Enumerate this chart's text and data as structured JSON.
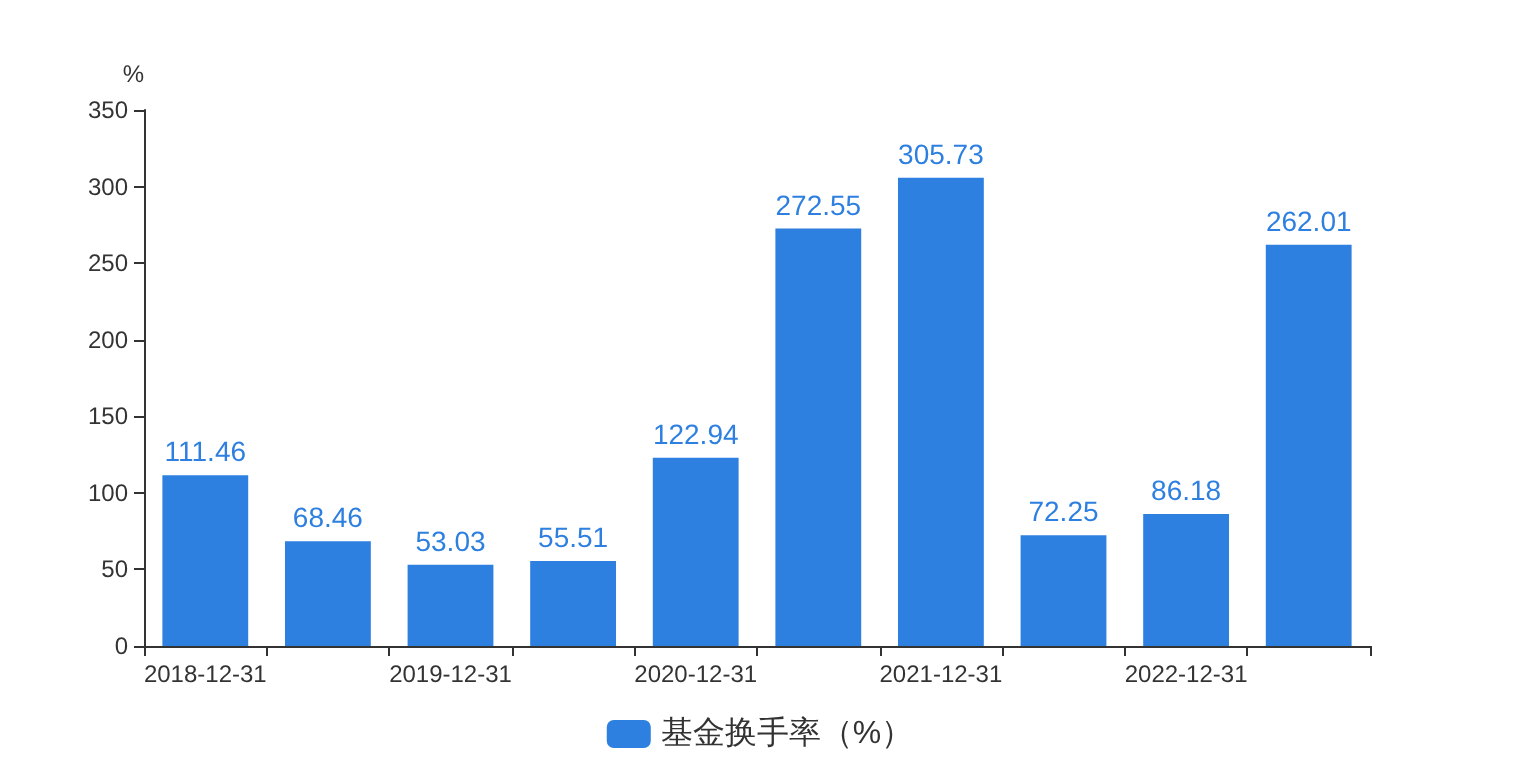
{
  "chart_data": {
    "type": "bar",
    "ylabel": "%",
    "categories": [
      "2018-12-31",
      null,
      "2019-12-31",
      null,
      "2020-12-31",
      null,
      "2021-12-31",
      null,
      "2022-12-31",
      null
    ],
    "series": [
      {
        "name": "基金换手率（%）",
        "color": "#2d7fe0",
        "values": [
          111.46,
          68.46,
          53.03,
          55.51,
          122.94,
          272.55,
          305.73,
          72.25,
          86.18,
          262.01
        ]
      }
    ],
    "ylim": [
      0,
      350
    ],
    "yticks": [
      0,
      50,
      100,
      150,
      200,
      250,
      300,
      350
    ],
    "data_labels": true,
    "grid": false,
    "legend": "bottom"
  }
}
